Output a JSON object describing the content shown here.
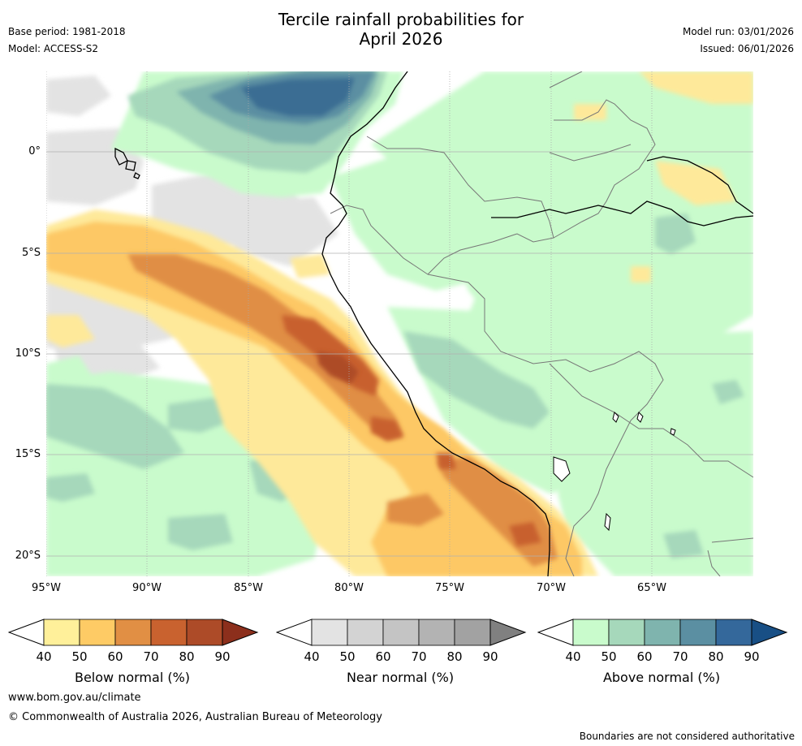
{
  "title": {
    "line1": "Tercile rainfall probabilities for",
    "line2": "April 2026"
  },
  "meta": {
    "base_period": "Base period: 1981-2018",
    "model": "Model: ACCESS-S2",
    "model_run": "Model run: 03/01/2026",
    "issued": "Issued: 06/01/2026"
  },
  "map": {
    "lat_labels": [
      "0°",
      "5°S",
      "10°S",
      "15°S",
      "20°S"
    ],
    "lon_labels": [
      "95°W",
      "90°W",
      "85°W",
      "80°W",
      "75°W",
      "70°W",
      "65°W"
    ],
    "lon_range": [
      -95,
      -60
    ],
    "lat_range": [
      4,
      -21
    ],
    "colors": {
      "ocean_bg": "#ffffff",
      "near": "#e3e3e3",
      "above_40": "#c9fbcc",
      "above_50": "#a6d8bb",
      "above_60": "#7fb4ae",
      "above_70": "#5b8fa2",
      "above_80": "#3a6d93",
      "below_40": "#fee99a",
      "below_50": "#fdc865",
      "below_60": "#e08e45",
      "below_70": "#c8602e",
      "below_80": "#ad4b28"
    }
  },
  "colorbars": {
    "values": [
      "40",
      "50",
      "60",
      "70",
      "80",
      "90"
    ],
    "below": {
      "label": "Below normal (%)",
      "colors": [
        "#fff09a",
        "#fecb65",
        "#e18f44",
        "#c9622f",
        "#ad4b28",
        "#8c2f1c"
      ]
    },
    "near": {
      "label": "Near normal (%)",
      "colors": [
        "#e3e3e3",
        "#d3d3d3",
        "#c4c4c4",
        "#b3b3b3",
        "#a2a2a2",
        "#808080"
      ]
    },
    "above": {
      "label": "Above normal (%)",
      "colors": [
        "#c9fbcc",
        "#a6d8bb",
        "#7fb4ae",
        "#5b8fa2",
        "#34689b",
        "#184f85"
      ]
    }
  },
  "footer": {
    "website": "www.bom.gov.au/climate",
    "copyright": "© Commonwealth of Australia 2026, Australian Bureau of Meteorology",
    "disclaimer": "Boundaries are not considered authoritative"
  }
}
